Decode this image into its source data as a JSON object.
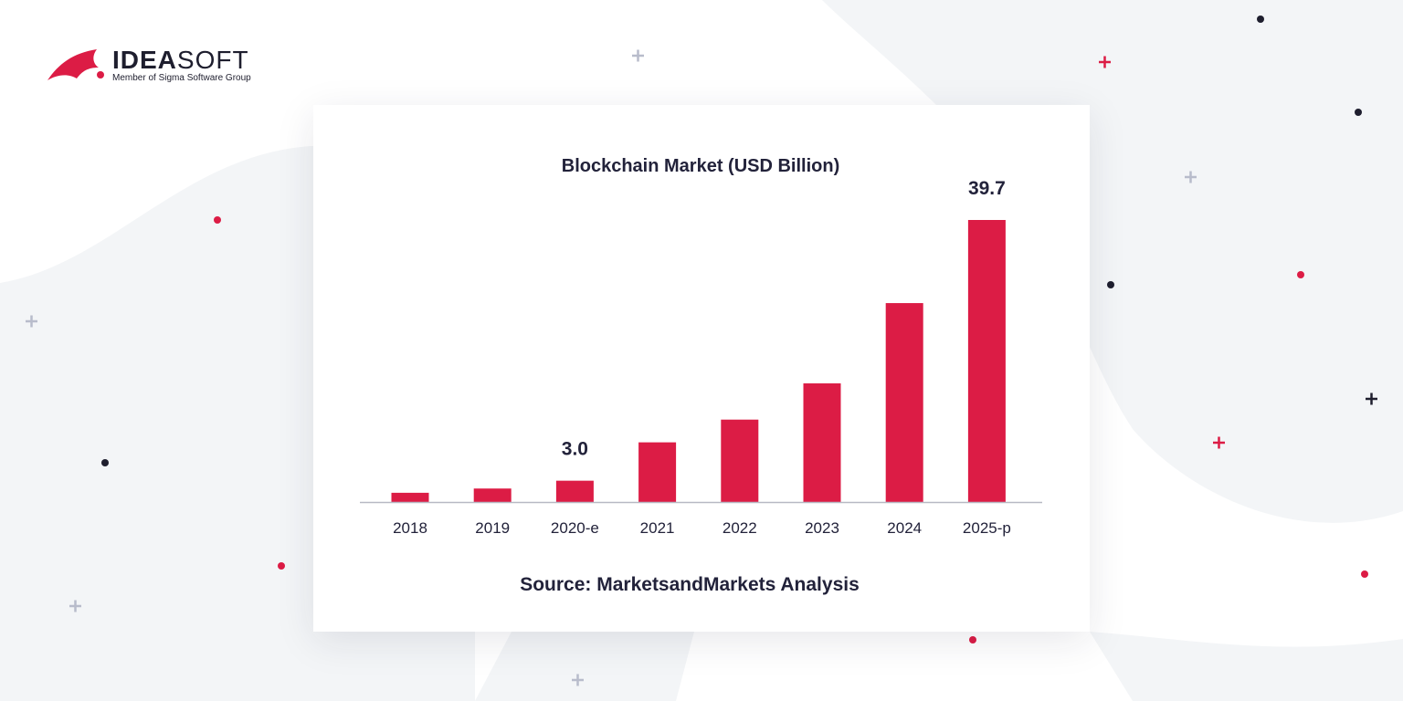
{
  "brand": {
    "name_bold": "IDEA",
    "name_light": "SOFT",
    "tagline": "Member of Sigma Software Group"
  },
  "colors": {
    "bar": "#dc1c45",
    "text": "#22223a",
    "background_shape": "#f3f5f7",
    "accent_dot": "#dc1c45",
    "dark_dot": "#1e1e2e"
  },
  "chart_data": {
    "type": "bar",
    "title": "Blockchain Market (USD Billion)",
    "source": "Source: MarketsandMarkets Analysis",
    "categories": [
      "2018",
      "2019",
      "2020-e",
      "2021",
      "2022",
      "2023",
      "2024",
      "2025-p"
    ],
    "values": [
      1.3,
      1.9,
      3.0,
      8.4,
      11.6,
      16.7,
      28.0,
      39.7
    ],
    "data_labels": {
      "2": "3.0",
      "7": "39.7"
    },
    "ylim": [
      0,
      39.7
    ],
    "grid": false,
    "legend": "none"
  }
}
